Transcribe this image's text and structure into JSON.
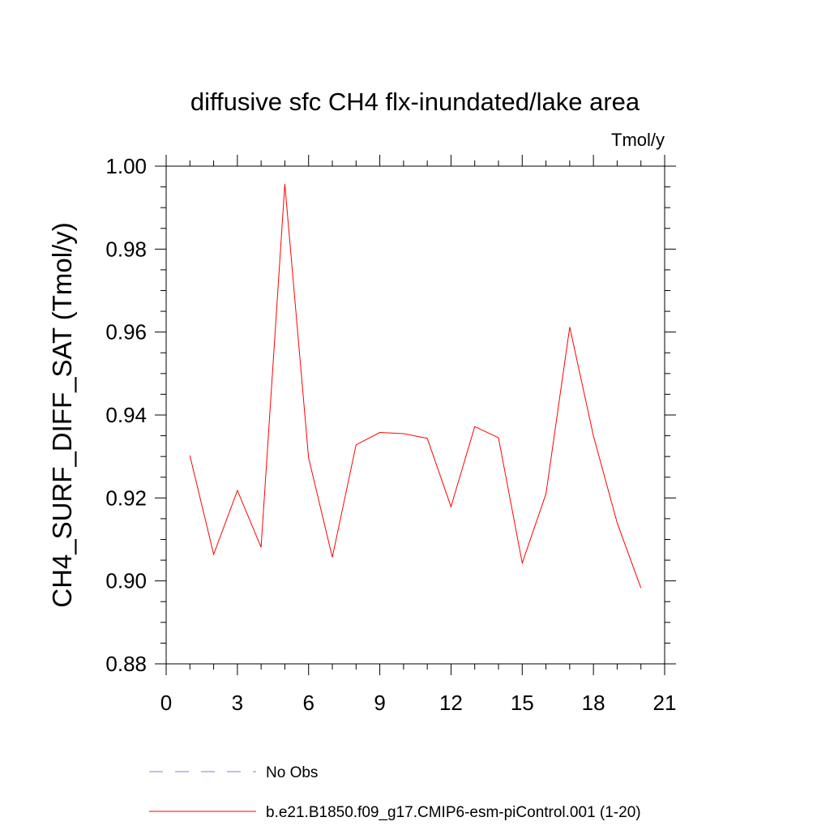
{
  "chart_data": {
    "type": "line",
    "title": "diffusive sfc CH4 flx-inundated/lake area",
    "units": "Tmol/y",
    "ylabel": "CH4_SURF_DIFF_SAT  (Tmol/y)",
    "xlabel": "",
    "xlim": [
      0,
      21
    ],
    "ylim": [
      0.88,
      1.0
    ],
    "xticks": [
      0,
      3,
      6,
      9,
      12,
      15,
      18,
      21
    ],
    "xtick_labels": [
      "0",
      "3",
      "6",
      "9",
      "12",
      "15",
      "18",
      "21"
    ],
    "yticks": [
      0.88,
      0.9,
      0.92,
      0.94,
      0.96,
      0.98,
      1.0
    ],
    "ytick_labels": [
      "0.88",
      "0.90",
      "0.92",
      "0.94",
      "0.96",
      "0.98",
      "1.00"
    ],
    "grid": false,
    "legend_position": "bottom",
    "series": [
      {
        "name": "b.e21.B1850.f09_g17.CMIP6-esm-piControl.001 (1-20)",
        "color": "#ff0000",
        "style": "solid",
        "x": [
          1,
          2,
          3,
          4,
          5,
          6,
          7,
          8,
          9,
          10,
          11,
          12,
          13,
          14,
          15,
          16,
          17,
          18,
          19,
          20
        ],
        "y": [
          0.9302,
          0.9064,
          0.9218,
          0.9081,
          0.9957,
          0.9297,
          0.9057,
          0.9328,
          0.9358,
          0.9355,
          0.9344,
          0.9179,
          0.9372,
          0.9345,
          0.9043,
          0.921,
          0.9612,
          0.935,
          0.914,
          0.8983
        ]
      }
    ],
    "legend": [
      {
        "label": "No Obs",
        "color": "#7f7fd8",
        "style": "dashed"
      },
      {
        "label": "b.e21.B1850.f09_g17.CMIP6-esm-piControl.001 (1-20)",
        "color": "#ff0000",
        "style": "solid"
      }
    ]
  }
}
